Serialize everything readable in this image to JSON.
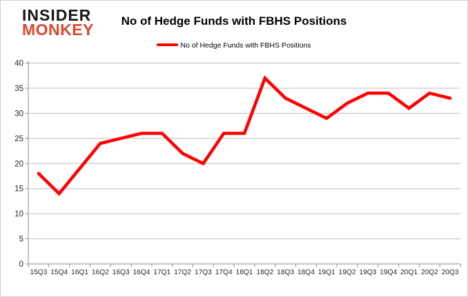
{
  "logo": {
    "line1": "INSIDER",
    "line2": "MONKEY"
  },
  "header": {
    "title": "No of Hedge Funds with FBHS Positions"
  },
  "legend": {
    "label": "No of Hedge Funds with FBHS Positions",
    "color": "#ff0000",
    "position": "top"
  },
  "colors": {
    "series_red": "#ff0000",
    "logo_red": "#d9472f",
    "gridline": "#bdbdbd",
    "axis": "#8c8c8c",
    "tick_label": "#262626"
  },
  "chart_data": {
    "type": "line",
    "title": "No of Hedge Funds with FBHS Positions",
    "categories": [
      "15Q3",
      "15Q4",
      "16Q1",
      "16Q2",
      "16Q3",
      "16Q4",
      "17Q1",
      "17Q2",
      "17Q3",
      "17Q4",
      "18Q1",
      "18Q2",
      "18Q3",
      "18Q4",
      "19Q1",
      "19Q2",
      "19Q3",
      "19Q4",
      "20Q1",
      "20Q2",
      "20Q3"
    ],
    "series": [
      {
        "name": "No of Hedge Funds with FBHS Positions",
        "color": "#ff0000",
        "values": [
          18,
          14,
          19,
          24,
          25,
          26,
          26,
          22,
          20,
          26,
          26,
          37,
          33,
          31,
          29,
          32,
          34,
          34,
          31,
          34,
          33
        ]
      }
    ],
    "xlabel": "",
    "ylabel": "",
    "ylim": [
      0,
      40
    ],
    "ytick_step": 5,
    "grid": true,
    "legend_position": "top"
  }
}
